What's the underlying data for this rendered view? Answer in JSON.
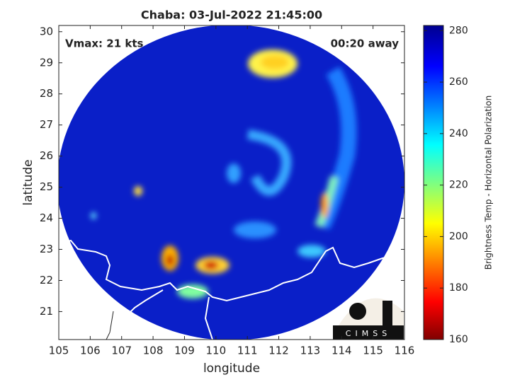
{
  "chart_data": {
    "type": "map",
    "title": "Chaba: 03-Jul-2022 21:45:00",
    "annotations": [
      "Vmax: 21 kts",
      "00:20 away"
    ],
    "x_label": "longitude",
    "y_label": "latitude",
    "xlim": [
      105,
      116
    ],
    "xticks": [
      105,
      106,
      107,
      108,
      109,
      110,
      111,
      112,
      113,
      114,
      115,
      116
    ],
    "ylim": [
      20.1,
      30.2
    ],
    "yticks": [
      21,
      22,
      23,
      24,
      25,
      26,
      27,
      28,
      29,
      30
    ],
    "colorbar": {
      "label": "Brightness Temp - Horizontal Polarization",
      "lim": [
        160,
        282
      ],
      "ticks": [
        160,
        180,
        200,
        220,
        240,
        260,
        280
      ],
      "colormap": "jet"
    },
    "logo": "CIMSS"
  }
}
